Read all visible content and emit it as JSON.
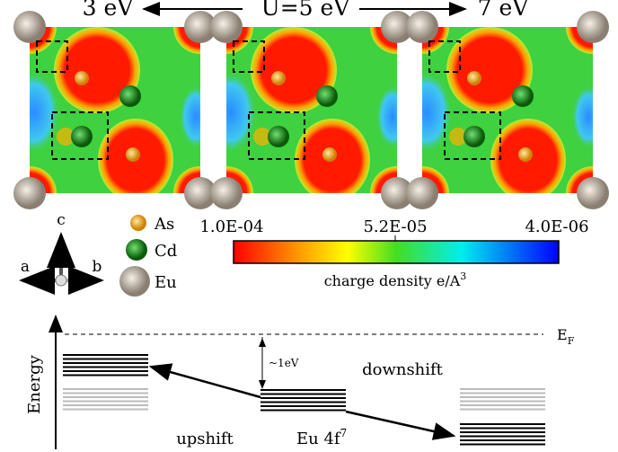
{
  "header": {
    "left": "3 eV",
    "center": "U=5 eV",
    "right": "7 eV"
  },
  "axes": {
    "c": "c",
    "a": "a",
    "b": "b"
  },
  "legend": {
    "as": "As",
    "cd": "Cd",
    "eu": "Eu"
  },
  "colorbar": {
    "ticks": [
      "1.0E-04",
      "5.2E-05",
      "4.0E-06"
    ],
    "label": "charge density e/A",
    "label_sup": "3"
  },
  "energy": {
    "axis": "Energy",
    "fermi": "E",
    "fermi_sub": "F",
    "gap": "~1eV",
    "downshift": "downshift",
    "upshift": "upshift",
    "level": "Eu 4f",
    "level_sup": "7"
  }
}
